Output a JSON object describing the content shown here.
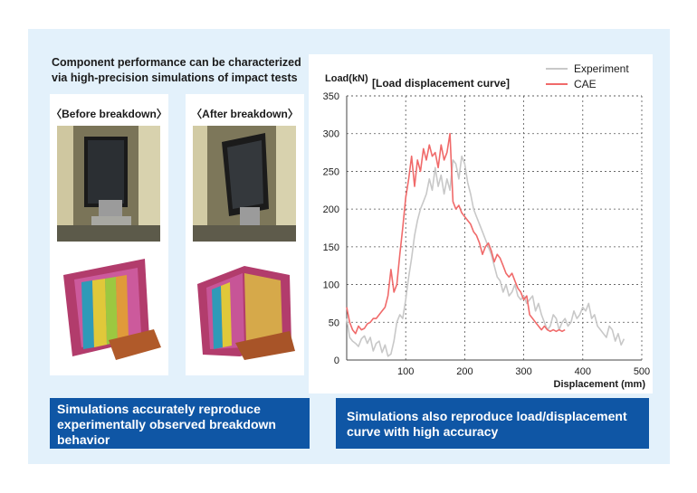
{
  "headline": "Component performance can be characterized via high-precision simulations of impact tests",
  "before_label": "〈Before breakdown〉",
  "after_label": "〈After breakdown〉",
  "callout_left": "Simulations accurately reproduce experimentally observed breakdown behavior",
  "callout_right": "Simulations also reproduce load/displacement curve with high accuracy",
  "colors": {
    "panel": "#e3f1fb",
    "callout": "#0f56a5",
    "experiment": "#c8c8c8",
    "cae": "#f06a6a"
  },
  "chart_data": {
    "type": "line",
    "title": "[Load displacement curve]",
    "xlabel": "Displacement (mm)",
    "ylabel": "Load(kN)",
    "xlim": [
      0,
      500
    ],
    "ylim": [
      0,
      350
    ],
    "xticks": [
      100,
      200,
      300,
      400,
      500
    ],
    "yticks": [
      0,
      50,
      100,
      150,
      200,
      250,
      300,
      350
    ],
    "grid": true,
    "legend_position": "top-right",
    "series": [
      {
        "name": "Experiment",
        "x": [
          0,
          5,
          10,
          15,
          20,
          25,
          30,
          35,
          40,
          45,
          50,
          55,
          60,
          65,
          70,
          75,
          80,
          85,
          90,
          95,
          100,
          105,
          110,
          115,
          120,
          125,
          130,
          135,
          140,
          145,
          150,
          155,
          160,
          165,
          170,
          175,
          180,
          185,
          190,
          195,
          200,
          205,
          210,
          215,
          220,
          225,
          230,
          235,
          240,
          245,
          250,
          255,
          260,
          265,
          270,
          275,
          280,
          285,
          290,
          295,
          300,
          305,
          310,
          315,
          320,
          325,
          330,
          335,
          340,
          345,
          350,
          355,
          360,
          365,
          370,
          375,
          380,
          385,
          390,
          395,
          400,
          405,
          410,
          415,
          420,
          425,
          430,
          435,
          440,
          445,
          450,
          455,
          460,
          465,
          470
        ],
        "y": [
          55,
          30,
          25,
          22,
          18,
          28,
          32,
          22,
          30,
          12,
          22,
          25,
          10,
          20,
          5,
          8,
          25,
          50,
          60,
          55,
          80,
          110,
          135,
          165,
          185,
          200,
          210,
          220,
          240,
          225,
          255,
          230,
          245,
          220,
          240,
          225,
          265,
          260,
          240,
          270,
          260,
          235,
          220,
          200,
          190,
          180,
          170,
          160,
          150,
          140,
          125,
          110,
          105,
          90,
          100,
          85,
          90,
          100,
          85,
          80,
          85,
          75,
          80,
          85,
          65,
          75,
          60,
          50,
          40,
          45,
          60,
          55,
          40,
          50,
          55,
          45,
          50,
          65,
          55,
          60,
          70,
          65,
          75,
          55,
          60,
          45,
          40,
          35,
          30,
          45,
          40,
          25,
          35,
          20,
          28
        ]
      },
      {
        "name": "CAE",
        "x": [
          0,
          5,
          10,
          15,
          20,
          25,
          30,
          35,
          40,
          45,
          50,
          55,
          60,
          65,
          70,
          75,
          80,
          85,
          90,
          95,
          100,
          105,
          110,
          115,
          120,
          125,
          130,
          135,
          140,
          145,
          150,
          155,
          160,
          165,
          170,
          175,
          180,
          185,
          190,
          195,
          200,
          205,
          210,
          215,
          220,
          225,
          230,
          235,
          240,
          245,
          250,
          255,
          260,
          265,
          270,
          275,
          280,
          285,
          290,
          295,
          300,
          305,
          310,
          315,
          320,
          325,
          330,
          335,
          340,
          345,
          350,
          355,
          360,
          365,
          370
        ],
        "y": [
          70,
          50,
          40,
          35,
          45,
          40,
          42,
          48,
          50,
          55,
          55,
          60,
          65,
          70,
          85,
          120,
          90,
          100,
          140,
          175,
          215,
          240,
          270,
          230,
          265,
          250,
          280,
          265,
          285,
          270,
          275,
          255,
          285,
          265,
          275,
          300,
          210,
          200,
          205,
          195,
          190,
          185,
          180,
          170,
          165,
          155,
          140,
          150,
          155,
          145,
          130,
          140,
          135,
          125,
          115,
          110,
          115,
          105,
          95,
          90,
          80,
          85,
          60,
          55,
          50,
          45,
          40,
          45,
          40,
          38,
          40,
          38,
          40,
          38,
          40
        ]
      }
    ]
  }
}
